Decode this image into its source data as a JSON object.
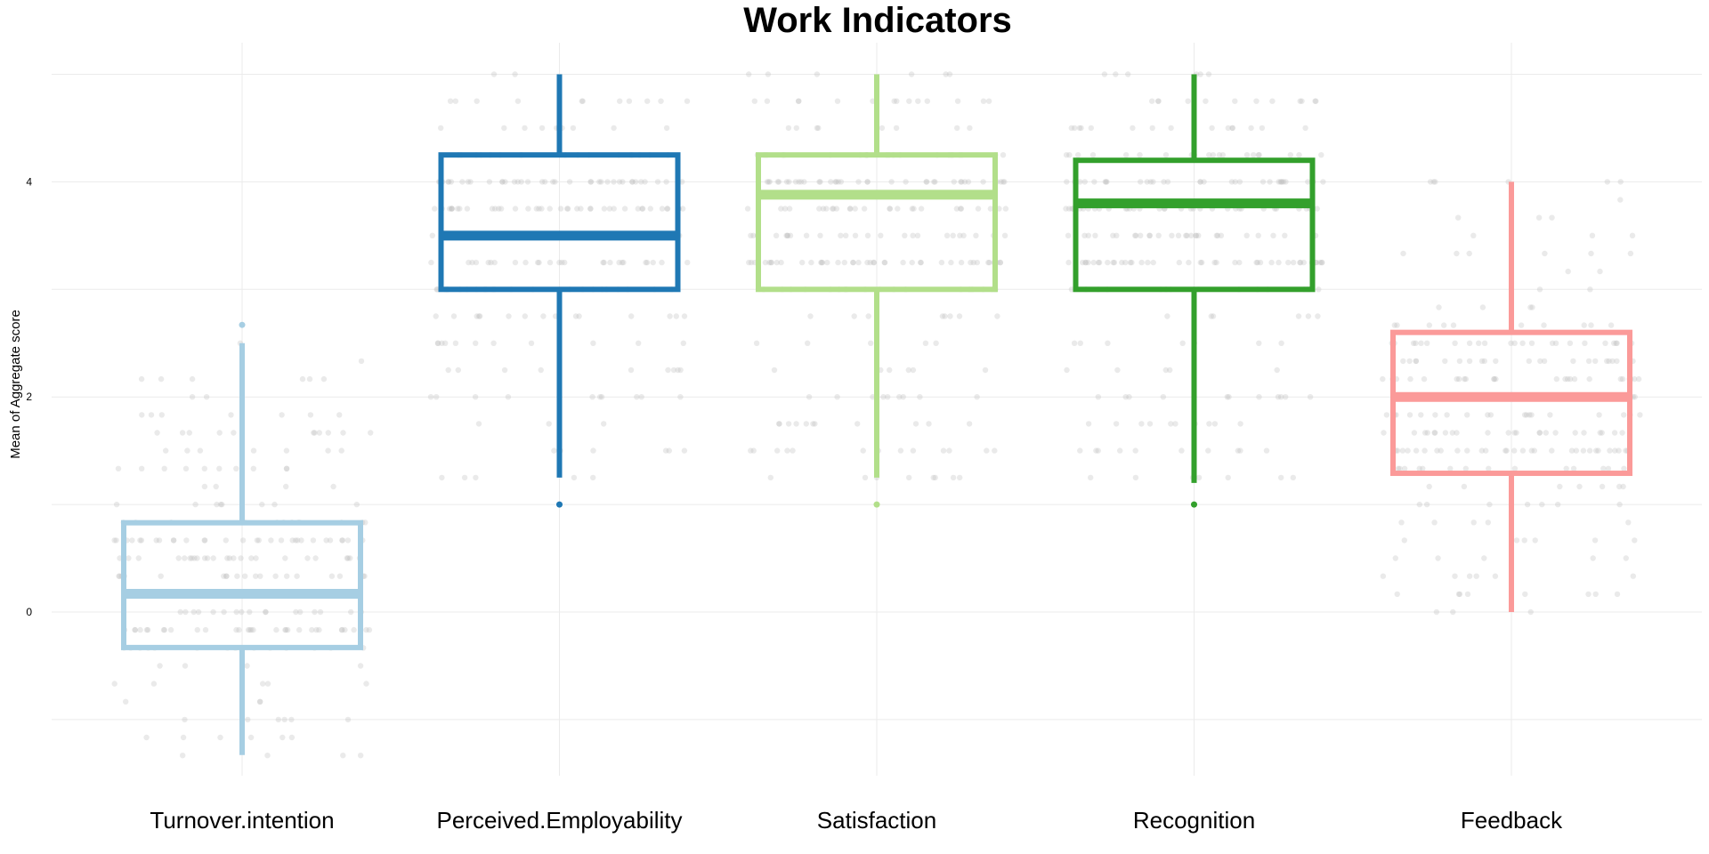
{
  "chart_data": {
    "type": "box",
    "title": "Work Indicators",
    "xlabel": "",
    "ylabel": "Mean of Aggregate score",
    "y_ticks": [
      "0",
      "2",
      "4"
    ],
    "y_tick_values": [
      0,
      2,
      4
    ],
    "ylim": [
      -1.65,
      5.4
    ],
    "grid": true,
    "jittered_points": true,
    "categories": [
      "Turnover.intention",
      "Perceived.Employability",
      "Satisfaction",
      "Recognition",
      "Feedback"
    ],
    "boxes": [
      {
        "name": "Turnover.intention",
        "color": "#a6cee3",
        "whisker_low": -1.33,
        "q1": -0.33,
        "median": 0.17,
        "q3": 0.83,
        "whisker_high": 2.5,
        "outliers": [
          2.67
        ]
      },
      {
        "name": "Perceived.Employability",
        "color": "#1f78b4",
        "whisker_low": 1.25,
        "q1": 3.0,
        "median": 3.5,
        "q3": 4.25,
        "whisker_high": 5.0,
        "outliers": [
          1.0
        ]
      },
      {
        "name": "Satisfaction",
        "color": "#b2df8a",
        "whisker_low": 1.25,
        "q1": 3.0,
        "median": 3.88,
        "q3": 4.25,
        "whisker_high": 5.0,
        "outliers": [
          1.0
        ]
      },
      {
        "name": "Recognition",
        "color": "#33a02c",
        "whisker_low": 1.2,
        "q1": 3.0,
        "median": 3.8,
        "q3": 4.2,
        "whisker_high": 5.0,
        "outliers": [
          1.0
        ]
      },
      {
        "name": "Feedback",
        "color": "#fb9a99",
        "whisker_low": 0.0,
        "q1": 1.29,
        "median": 2.0,
        "q3": 2.6,
        "whisker_high": 4.0,
        "outliers": []
      }
    ]
  }
}
